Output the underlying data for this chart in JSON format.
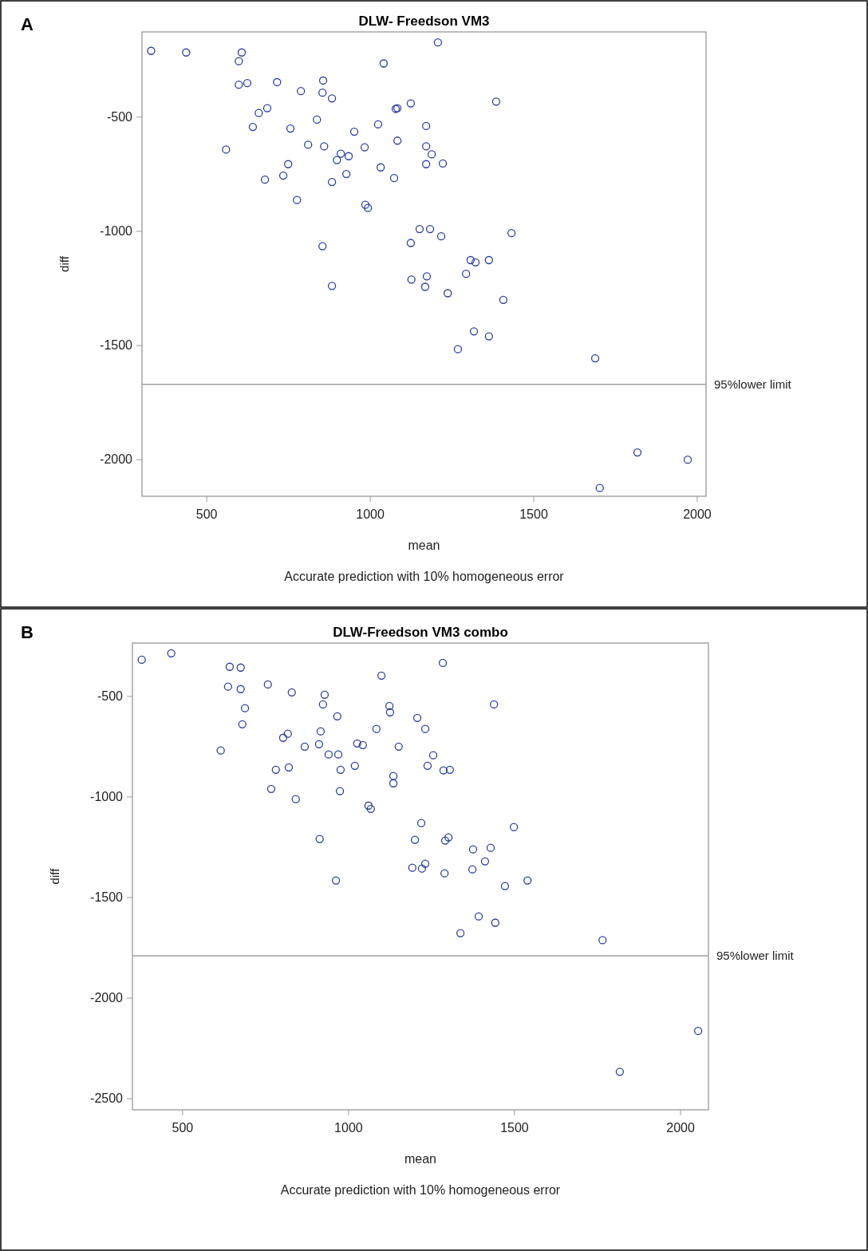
{
  "chart_data": [
    {
      "type": "scatter",
      "title": "DLW- Freedson VM3",
      "xlabel": "mean",
      "ylabel": "diff",
      "annotations": [
        "A",
        "Accurate prediction with 10% homogeneous error"
      ],
      "xlim": [
        302,
        2027
      ],
      "ylim": [
        -2160,
        -127
      ],
      "xticks": [
        500,
        1000,
        1500,
        2000
      ],
      "yticks": [
        -500,
        -1000,
        -1500,
        -2000
      ],
      "grid": false,
      "marker": "circle",
      "ref_lines": [
        {
          "axis": "y",
          "value": -1670,
          "label": "95%lower limit",
          "color": "#a0a0a0"
        }
      ],
      "series": [
        {
          "color": "#2a3f9e",
          "x": [
            330,
            437,
            607,
            598,
            598,
            624,
            715,
            788,
            856,
            854,
            883,
            1041,
            1124,
            1078,
            1083,
            659,
            685,
            837,
            641,
            756,
            1024,
            951,
            1083,
            559,
            810,
            859,
            910,
            898,
            934,
            983,
            749,
            734,
            678,
            883,
            927,
            1032,
            1073,
            776,
            985,
            993,
            854,
            883,
            1124,
            1207,
            1385,
            1171,
            1171,
            1188,
            1171,
            1222,
            1151,
            1183,
            1217,
            1432,
            1307,
            1322,
            1363,
            1293,
            1173,
            1168,
            1237,
            1407,
            1317,
            1363,
            1268,
            1688,
            1817,
            1971,
            1702,
            1126
          ],
          "values": [
            -210,
            -217,
            -217,
            -255,
            -358,
            -351,
            -347,
            -386,
            -340,
            -393,
            -418,
            -265,
            -440,
            -464,
            -461,
            -482,
            -461,
            -511,
            -543,
            -550,
            -532,
            -564,
            -603,
            -642,
            -621,
            -628,
            -660,
            -688,
            -671,
            -632,
            -706,
            -756,
            -774,
            -784,
            -749,
            -720,
            -767,
            -863,
            -884,
            -898,
            -1065,
            -1239,
            -1051,
            -173,
            -432,
            -539,
            -628,
            -663,
            -706,
            -703,
            -990,
            -990,
            -1022,
            -1008,
            -1126,
            -1136,
            -1126,
            -1186,
            -1197,
            -1243,
            -1271,
            -1300,
            -1438,
            -1460,
            -1516,
            -1556,
            -1968,
            -2000,
            -2124,
            -1211
          ]
        }
      ]
    },
    {
      "type": "scatter",
      "title": "DLW-Freedson VM3 combo",
      "xlabel": "mean",
      "ylabel": "diff",
      "annotations": [
        "B",
        "Accurate prediction with 10% homogeneous error"
      ],
      "xlim": [
        349,
        2084
      ],
      "ylim": [
        -2555,
        -235
      ],
      "xticks": [
        500,
        1000,
        1500,
        2000
      ],
      "yticks": [
        -500,
        -1000,
        -1500,
        -2000,
        -2500
      ],
      "grid": false,
      "marker": "circle",
      "ref_lines": [
        {
          "axis": "y",
          "value": -1790,
          "label": "95%lower limit",
          "color": "#a0a0a0"
        }
      ],
      "series": [
        {
          "color": "#2a3f9e",
          "x": [
            377,
            466,
            642,
            675,
            637,
            675,
            757,
            688,
            680,
            829,
            928,
            923,
            966,
            1099,
            1123,
            1125,
            1207,
            1084,
            615,
            803,
            817,
            868,
            916,
            911,
            940,
            969,
            1026,
            1043,
            1151,
            781,
            820,
            976,
            1019,
            767,
            841,
            974,
            1135,
            1135,
            1060,
            1067,
            913,
            962,
            1200,
            1192,
            1284,
            1438,
            1231,
            1255,
            1238,
            1286,
            1305,
            1219,
            1301,
            1291,
            1498,
            1375,
            1428,
            1411,
            1221,
            1231,
            1289,
            1373,
            1471,
            1539,
            1392,
            1442,
            1337,
            1765,
            2053,
            1817
          ],
          "values": [
            -318,
            -286,
            -353,
            -357,
            -452,
            -464,
            -441,
            -559,
            -639,
            -480,
            -492,
            -540,
            -599,
            -397,
            -548,
            -579,
            -607,
            -662,
            -769,
            -706,
            -686,
            -750,
            -674,
            -738,
            -789,
            -789,
            -734,
            -742,
            -750,
            -865,
            -853,
            -865,
            -845,
            -960,
            -1011,
            -971,
            -896,
            -932,
            -1043,
            -1059,
            -1209,
            -1415,
            -1213,
            -1352,
            -334,
            -540,
            -662,
            -793,
            -845,
            -868,
            -865,
            -1130,
            -1201,
            -1217,
            -1150,
            -1261,
            -1253,
            -1320,
            -1356,
            -1332,
            -1380,
            -1360,
            -1443,
            -1415,
            -1594,
            -1625,
            -1677,
            -1712,
            -2163,
            -2366
          ]
        }
      ]
    }
  ]
}
